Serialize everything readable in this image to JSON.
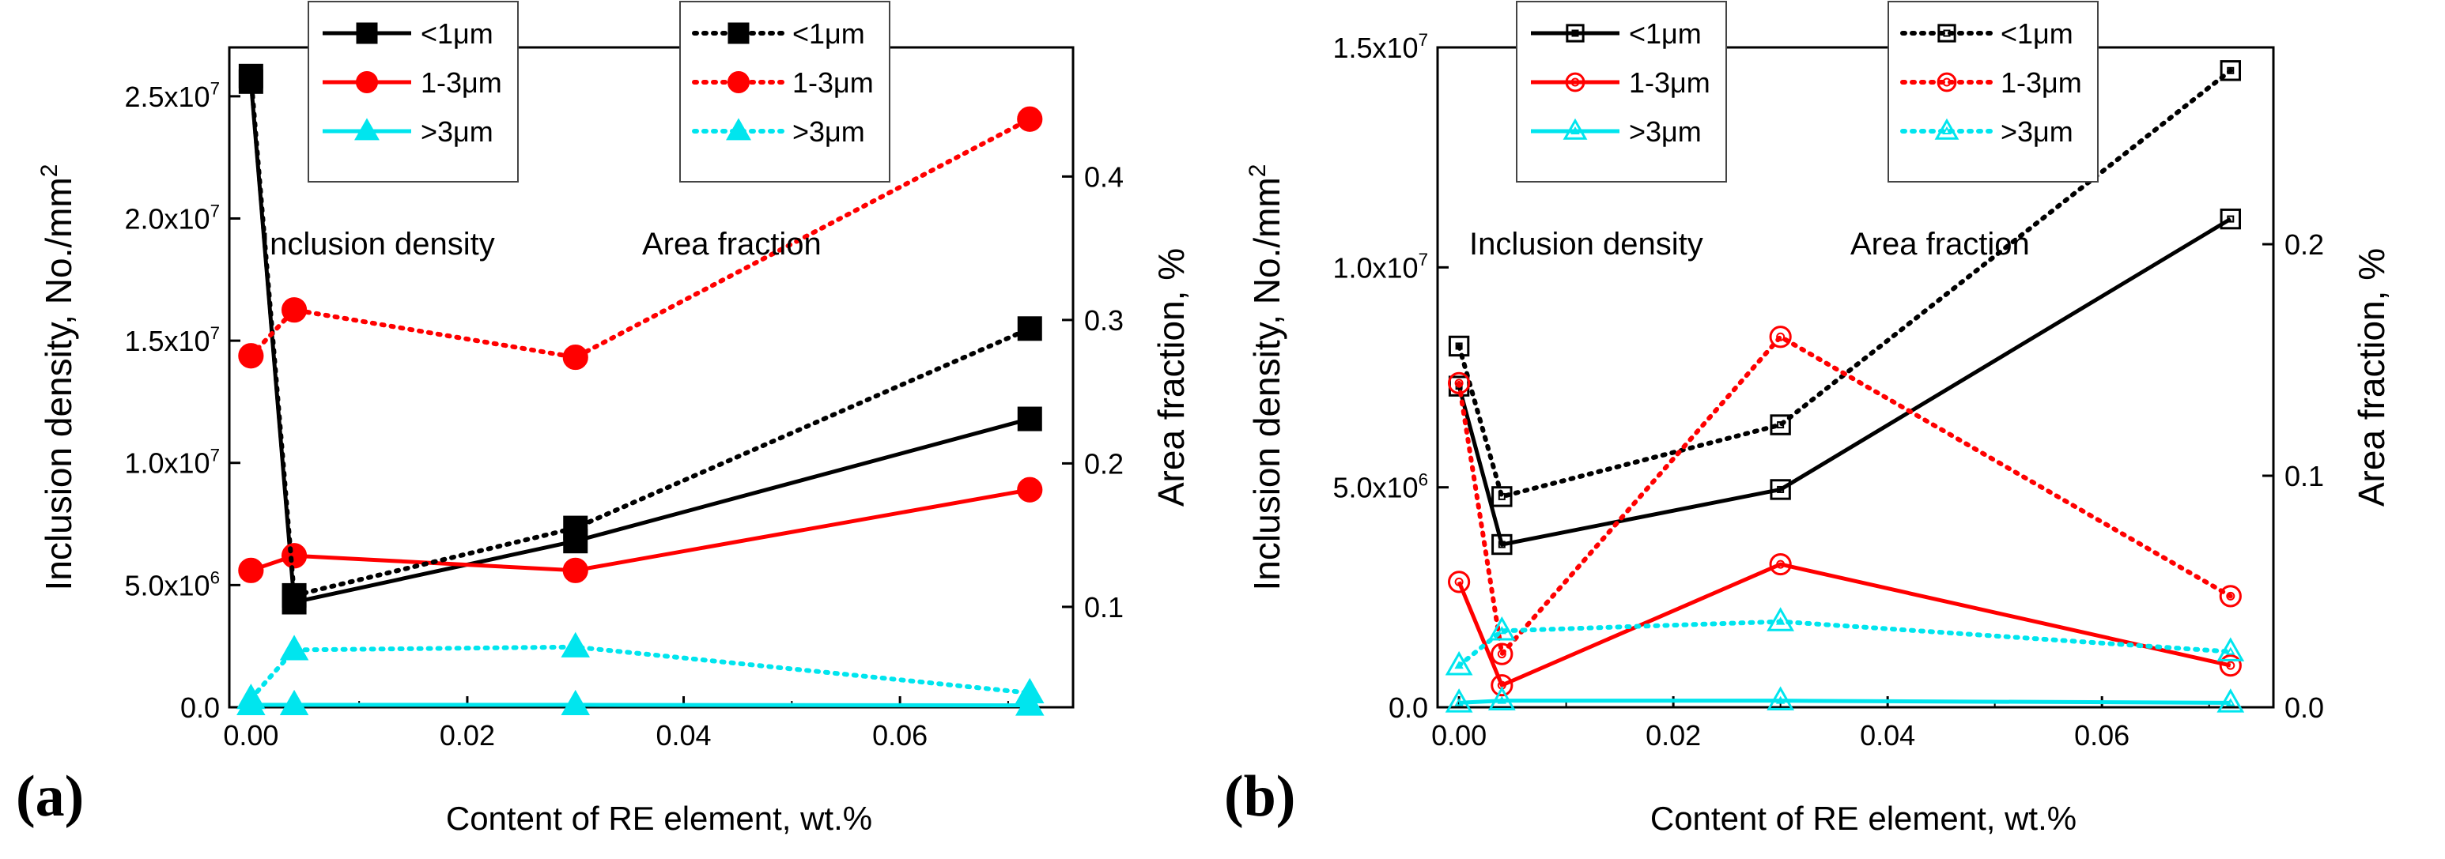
{
  "chart_data": [
    {
      "type": "line",
      "panel_label": "(a)",
      "xlabel": "Content of RE element, wt.%",
      "ylabel_left": "Inclusion density, No./mm",
      "ylabel_left_sup": "2",
      "ylabel_right": "Area fraction, %",
      "xlim": [
        -0.002,
        0.076
      ],
      "ylim_left": [
        0,
        27000000
      ],
      "ylim_right": [
        0.03,
        0.49
      ],
      "x_ticks": [
        0.0,
        0.02,
        0.04,
        0.06
      ],
      "x_tick_labels": [
        "0.00",
        "0.02",
        "0.04",
        "0.06"
      ],
      "y_left_ticks": [
        0,
        5000000,
        10000000,
        15000000,
        20000000,
        25000000
      ],
      "y_left_tick_labels": [
        {
          "base": "0.0",
          "exp": ""
        },
        {
          "base": "5.0x10",
          "exp": "6"
        },
        {
          "base": "1.0x10",
          "exp": "7"
        },
        {
          "base": "1.5x10",
          "exp": "7"
        },
        {
          "base": "2.0x10",
          "exp": "7"
        },
        {
          "base": "2.5x10",
          "exp": "7"
        }
      ],
      "y_right_ticks": [
        0.1,
        0.2,
        0.3,
        0.4
      ],
      "y_right_tick_labels": [
        "0.1",
        "0.2",
        "0.3",
        "0.4"
      ],
      "annotations": [
        "Inclusion density",
        "Area fraction"
      ],
      "legend_density": [
        {
          "label": "<1μm",
          "color": "#000000",
          "marker": "square"
        },
        {
          "label": "1-3μm",
          "color": "#ff0000",
          "marker": "circle"
        },
        {
          "label": ">3μm",
          "color": "#00e5ee",
          "marker": "triangle"
        }
      ],
      "legend_area": [
        {
          "label": "<1μm",
          "color": "#000000",
          "marker": "square"
        },
        {
          "label": "1-3μm",
          "color": "#ff0000",
          "marker": "circle"
        },
        {
          "label": ">3μm",
          "color": "#00e5ee",
          "marker": "triangle"
        }
      ],
      "marker_fill": "filled",
      "series": [
        {
          "name": "<1μm",
          "group": "Inclusion density",
          "axis": "left",
          "dash": "solid",
          "color": "#000000",
          "marker": "square",
          "x": [
            0.0,
            0.004,
            0.03,
            0.072
          ],
          "y": [
            25600000,
            4300000,
            6800000,
            11800000
          ]
        },
        {
          "name": "1-3μm",
          "group": "Inclusion density",
          "axis": "left",
          "dash": "solid",
          "color": "#ff0000",
          "marker": "circle",
          "x": [
            0.0,
            0.004,
            0.03,
            0.072
          ],
          "y": [
            5600000,
            6200000,
            5600000,
            8900000
          ]
        },
        {
          "name": ">3μm",
          "group": "Inclusion density",
          "axis": "left",
          "dash": "solid",
          "color": "#00e5ee",
          "marker": "triangle",
          "x": [
            0.0,
            0.004,
            0.03,
            0.072
          ],
          "y": [
            100000,
            100000,
            100000,
            80000
          ]
        },
        {
          "name": "<1μm",
          "group": "Area fraction",
          "axis": "right",
          "dash": "dotted",
          "color": "#000000",
          "marker": "square",
          "x": [
            0.0,
            0.004,
            0.03,
            0.072
          ],
          "y": [
            0.47,
            0.108,
            0.155,
            0.294
          ]
        },
        {
          "name": "1-3μm",
          "group": "Area fraction",
          "axis": "right",
          "dash": "dotted",
          "color": "#ff0000",
          "marker": "circle",
          "x": [
            0.0,
            0.004,
            0.03,
            0.072
          ],
          "y": [
            0.275,
            0.307,
            0.274,
            0.44
          ]
        },
        {
          "name": ">3μm",
          "group": "Area fraction",
          "axis": "right",
          "dash": "dotted",
          "color": "#00e5ee",
          "marker": "triangle",
          "x": [
            0.0,
            0.004,
            0.03,
            0.072
          ],
          "y": [
            0.036,
            0.07,
            0.072,
            0.04
          ]
        }
      ]
    },
    {
      "type": "line",
      "panel_label": "(b)",
      "xlabel": "Content of RE element, wt.%",
      "ylabel_left": "Inclusion density, No./mm",
      "ylabel_left_sup": "2",
      "ylabel_right": "Area fraction, %",
      "xlim": [
        -0.002,
        0.076
      ],
      "ylim_left": [
        0,
        15000000
      ],
      "ylim_right": [
        0,
        0.285
      ],
      "x_ticks": [
        0.0,
        0.02,
        0.04,
        0.06
      ],
      "x_tick_labels": [
        "0.00",
        "0.02",
        "0.04",
        "0.06"
      ],
      "y_left_ticks": [
        0,
        5000000,
        10000000,
        15000000
      ],
      "y_left_tick_labels": [
        {
          "base": "0.0",
          "exp": ""
        },
        {
          "base": "5.0x10",
          "exp": "6"
        },
        {
          "base": "1.0x10",
          "exp": "7"
        },
        {
          "base": "1.5x10",
          "exp": "7"
        }
      ],
      "y_right_ticks": [
        0.0,
        0.1,
        0.2
      ],
      "y_right_tick_labels": [
        "0.0",
        "0.1",
        "0.2"
      ],
      "annotations": [
        "Inclusion density",
        "Area fraction"
      ],
      "legend_density": [
        {
          "label": "<1μm",
          "color": "#000000",
          "marker": "square"
        },
        {
          "label": "1-3μm",
          "color": "#ff0000",
          "marker": "circle"
        },
        {
          "label": ">3μm",
          "color": "#00e5ee",
          "marker": "triangle"
        }
      ],
      "legend_area": [
        {
          "label": "<1μm",
          "color": "#000000",
          "marker": "square"
        },
        {
          "label": "1-3μm",
          "color": "#ff0000",
          "marker": "circle"
        },
        {
          "label": ">3μm",
          "color": "#00e5ee",
          "marker": "triangle"
        }
      ],
      "marker_fill": "hollow",
      "series": [
        {
          "name": "<1μm",
          "group": "Inclusion density",
          "axis": "left",
          "dash": "solid",
          "color": "#000000",
          "marker": "square",
          "x": [
            0.0,
            0.004,
            0.03,
            0.072
          ],
          "y": [
            7300000,
            3700000,
            4950000,
            11100000
          ]
        },
        {
          "name": "1-3μm",
          "group": "Inclusion density",
          "axis": "left",
          "dash": "solid",
          "color": "#ff0000",
          "marker": "circle",
          "x": [
            0.0,
            0.004,
            0.03,
            0.072
          ],
          "y": [
            2850000,
            500000,
            3250000,
            950000
          ]
        },
        {
          "name": ">3μm",
          "group": "Inclusion density",
          "axis": "left",
          "dash": "solid",
          "color": "#00e5ee",
          "marker": "triangle",
          "x": [
            0.0,
            0.004,
            0.03,
            0.072
          ],
          "y": [
            100000,
            150000,
            150000,
            100000
          ]
        },
        {
          "name": "<1μm",
          "group": "Area fraction",
          "axis": "right",
          "dash": "dotted",
          "color": "#000000",
          "marker": "square",
          "x": [
            0.0,
            0.004,
            0.03,
            0.072
          ],
          "y": [
            0.156,
            0.091,
            0.122,
            0.275
          ]
        },
        {
          "name": "1-3μm",
          "group": "Area fraction",
          "axis": "right",
          "dash": "dotted",
          "color": "#ff0000",
          "marker": "circle",
          "x": [
            0.0,
            0.004,
            0.03,
            0.072
          ],
          "y": [
            0.14,
            0.023,
            0.16,
            0.048
          ]
        },
        {
          "name": ">3μm",
          "group": "Area fraction",
          "axis": "right",
          "dash": "dotted",
          "color": "#00e5ee",
          "marker": "triangle",
          "x": [
            0.0,
            0.004,
            0.03,
            0.072
          ],
          "y": [
            0.018,
            0.033,
            0.037,
            0.024
          ]
        }
      ]
    }
  ]
}
